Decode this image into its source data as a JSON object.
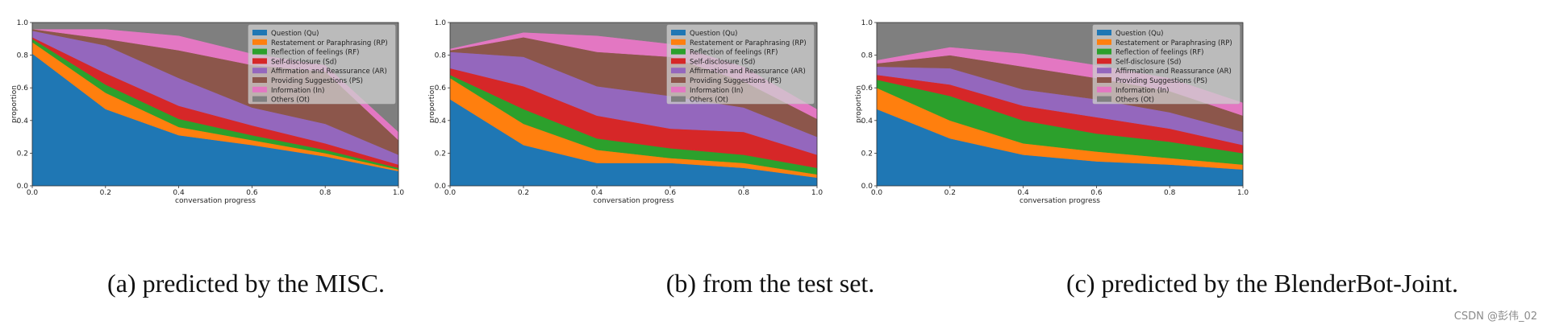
{
  "legend_labels": [
    "Question (Qu)",
    "Restatement or Paraphrasing (RP)",
    "Reflection of feelings (RF)",
    "Self-disclosure (Sd)",
    "Affirmation and Reassurance (AR)",
    "Providing Suggestions (PS)",
    "Information (In)",
    "Others (Ot)"
  ],
  "colors": [
    "#1f77b4",
    "#ff7f0e",
    "#2ca02c",
    "#d62728",
    "#9467bd",
    "#8c564b",
    "#e377c2",
    "#7f7f7f"
  ],
  "watermark": "CSDN @彭伟_02",
  "chart_data": [
    {
      "type": "area",
      "caption": "(a)  predicted by the MISC.",
      "xlabel": "conversation progress",
      "ylabel": "proportion",
      "xlim": [
        0,
        1
      ],
      "ylim": [
        0,
        1
      ],
      "x": [
        0,
        0.2,
        0.4,
        0.6,
        0.8,
        1.0
      ],
      "x_ticks": [
        "0.0",
        "0.2",
        "0.4",
        "0.6",
        "0.8",
        "1.0"
      ],
      "y_ticks": [
        "0.0",
        "0.2",
        "0.4",
        "0.6",
        "0.8",
        "1.0"
      ],
      "legend": "top-right",
      "cumulative": [
        [
          0.81,
          0.47,
          0.31,
          0.25,
          0.18,
          0.09
        ],
        [
          0.88,
          0.57,
          0.36,
          0.28,
          0.2,
          0.1
        ],
        [
          0.9,
          0.62,
          0.41,
          0.31,
          0.22,
          0.11
        ],
        [
          0.91,
          0.69,
          0.49,
          0.37,
          0.26,
          0.13
        ],
        [
          0.95,
          0.86,
          0.66,
          0.48,
          0.38,
          0.19
        ],
        [
          0.96,
          0.9,
          0.83,
          0.74,
          0.7,
          0.28
        ],
        [
          0.96,
          0.96,
          0.92,
          0.81,
          0.74,
          0.33
        ],
        [
          1,
          1,
          1,
          1,
          1,
          1
        ]
      ]
    },
    {
      "type": "area",
      "caption": "(b)  from the test set.",
      "xlabel": "conversation progress",
      "ylabel": "proportion",
      "xlim": [
        0,
        1
      ],
      "ylim": [
        0,
        1
      ],
      "x": [
        0,
        0.2,
        0.4,
        0.6,
        0.8,
        1.0
      ],
      "x_ticks": [
        "0.0",
        "0.2",
        "0.4",
        "0.6",
        "0.8",
        "1.0"
      ],
      "y_ticks": [
        "0.0",
        "0.2",
        "0.4",
        "0.6",
        "0.8",
        "1.0"
      ],
      "legend": "top-right",
      "cumulative": [
        [
          0.53,
          0.25,
          0.14,
          0.14,
          0.11,
          0.05
        ],
        [
          0.66,
          0.38,
          0.22,
          0.17,
          0.14,
          0.07
        ],
        [
          0.68,
          0.47,
          0.29,
          0.23,
          0.19,
          0.11
        ],
        [
          0.72,
          0.61,
          0.43,
          0.35,
          0.33,
          0.19
        ],
        [
          0.82,
          0.79,
          0.61,
          0.55,
          0.48,
          0.3
        ],
        [
          0.83,
          0.91,
          0.82,
          0.79,
          0.64,
          0.41
        ],
        [
          0.84,
          0.94,
          0.92,
          0.87,
          0.73,
          0.47
        ],
        [
          1,
          1,
          1,
          1,
          1,
          1
        ]
      ]
    },
    {
      "type": "area",
      "caption": "(c)  predicted by the BlenderBot-Joint.",
      "xlabel": "conversation progress",
      "ylabel": "proportion",
      "xlim": [
        0,
        1
      ],
      "ylim": [
        0,
        1
      ],
      "x": [
        0,
        0.2,
        0.4,
        0.6,
        0.8,
        1.0
      ],
      "x_ticks": [
        "0.0",
        "0.2",
        "0.4",
        "0.6",
        "0.8",
        "1.0"
      ],
      "y_ticks": [
        "0.0",
        "0.2",
        "0.4",
        "0.6",
        "0.8",
        "1.0"
      ],
      "legend": "top-right",
      "cumulative": [
        [
          0.47,
          0.29,
          0.19,
          0.15,
          0.13,
          0.1
        ],
        [
          0.6,
          0.4,
          0.26,
          0.21,
          0.17,
          0.13
        ],
        [
          0.65,
          0.55,
          0.4,
          0.32,
          0.27,
          0.2
        ],
        [
          0.68,
          0.62,
          0.49,
          0.42,
          0.35,
          0.25
        ],
        [
          0.73,
          0.72,
          0.59,
          0.53,
          0.45,
          0.33
        ],
        [
          0.75,
          0.8,
          0.73,
          0.66,
          0.58,
          0.43
        ],
        [
          0.77,
          0.85,
          0.81,
          0.74,
          0.66,
          0.51
        ],
        [
          1,
          1,
          1,
          1,
          1,
          1
        ]
      ]
    }
  ]
}
